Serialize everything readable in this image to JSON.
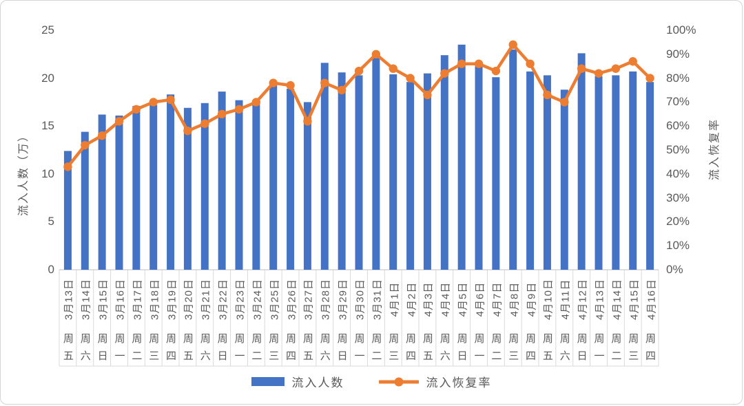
{
  "chart_data": {
    "type": "combo_bar_line",
    "title": "",
    "grid": "off",
    "legend_position": "bottom",
    "categories": [
      "3月13日",
      "3月14日",
      "3月15日",
      "3月16日",
      "3月17日",
      "3月18日",
      "3月19日",
      "3月20日",
      "3月21日",
      "3月22日",
      "3月23日",
      "3月24日",
      "3月25日",
      "3月26日",
      "3月27日",
      "3月28日",
      "3月29日",
      "3月30日",
      "3月31日",
      "4月1日",
      "4月2日",
      "4月3日",
      "4月4日",
      "4月5日",
      "4月6日",
      "4月7日",
      "4月8日",
      "4月9日",
      "4月10日",
      "4月11日",
      "4月12日",
      "4月13日",
      "4月14日",
      "4月15日",
      "4月16日"
    ],
    "weekday_labels": [
      "周五",
      "周六",
      "周日",
      "周一",
      "周二",
      "周三",
      "周四",
      "周五",
      "周六",
      "周日",
      "周一",
      "周二",
      "周三",
      "周四",
      "周五",
      "周六",
      "周日",
      "周一",
      "周二",
      "周三",
      "周四",
      "周五",
      "周六",
      "周日",
      "周一",
      "周二",
      "周三",
      "周四",
      "周五",
      "周六",
      "周日",
      "周一",
      "周二",
      "周三",
      "周四"
    ],
    "series": [
      {
        "name": "流入人数",
        "type": "bar",
        "axis": "left",
        "color": "#4472C4",
        "values": [
          12.4,
          14.4,
          16.2,
          16.1,
          17.1,
          17.2,
          18.3,
          16.9,
          17.4,
          18.6,
          17.7,
          17.3,
          19.3,
          18.9,
          17.5,
          21.6,
          20.6,
          20.3,
          22.1,
          20.4,
          19.6,
          20.5,
          22.4,
          23.5,
          21.3,
          20.1,
          23.0,
          20.7,
          20.3,
          18.8,
          22.6,
          20.2,
          20.3,
          20.7,
          19.6
        ]
      },
      {
        "name": "流入恢复率",
        "type": "line",
        "axis": "right",
        "color": "#ED7D31",
        "values_percent": [
          43,
          52,
          56,
          62,
          67,
          70,
          71,
          58,
          61,
          65,
          67,
          70,
          78,
          77,
          62,
          78,
          75,
          83,
          90,
          84,
          80,
          73,
          82,
          86,
          86,
          83,
          94,
          86,
          73,
          70,
          84,
          82,
          84,
          87,
          80
        ]
      }
    ],
    "left_axis": {
      "title": "流入人数（万）",
      "min": 0,
      "max": 25,
      "ticks": [
        "25",
        "20",
        "15",
        "10",
        "5",
        "0"
      ]
    },
    "right_axis": {
      "title": "流入恢复率",
      "min": 0,
      "max": 100,
      "ticks": [
        "100%",
        "90%",
        "80%",
        "70%",
        "60%",
        "50%",
        "40%",
        "30%",
        "20%",
        "10%",
        "0%"
      ]
    },
    "legend": [
      {
        "label": "流入人数",
        "swatch": "bar"
      },
      {
        "label": "流入恢复率",
        "swatch": "line-dot"
      }
    ]
  },
  "colors": {
    "bar": "#4472C4",
    "line": "#ED7D31",
    "text": "#595959",
    "cell_border": "#D9D9D9",
    "axis_line": "#C9C9C9"
  }
}
